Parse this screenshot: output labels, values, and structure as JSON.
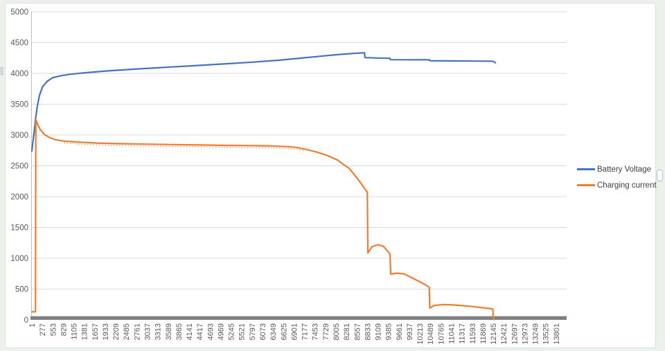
{
  "page": {
    "background": "#ecf1ec"
  },
  "chart": {
    "background": "#ffffff",
    "border_color": "#d7dee3",
    "gridline_color": "#d9d9d9",
    "axis_line_color": "#bfbfbf",
    "axis_bar_color": "#808080",
    "tick_label_color": "#595959",
    "legend_text_color": "#3f3f3f"
  },
  "chart_data": {
    "type": "line",
    "title": "",
    "xlabel": "",
    "ylabel": "",
    "xlim": [
      1,
      14077
    ],
    "ylim": [
      0,
      5000
    ],
    "grid": "horizontal",
    "legend_position": "right",
    "y_ticks": [
      0,
      500,
      1000,
      1500,
      2000,
      2500,
      3000,
      3500,
      4000,
      4500,
      5000
    ],
    "x_ticks": [
      1,
      277,
      553,
      829,
      1105,
      1381,
      1657,
      1933,
      2209,
      2485,
      2761,
      3037,
      3313,
      3589,
      3865,
      4141,
      4417,
      4693,
      4969,
      5245,
      5521,
      5797,
      6073,
      6349,
      6625,
      6901,
      7177,
      7453,
      7729,
      8005,
      8281,
      8557,
      8833,
      9109,
      9385,
      9661,
      9937,
      10213,
      10489,
      10765,
      11041,
      11317,
      11593,
      11869,
      12145,
      12421,
      12697,
      12973,
      13249,
      13525,
      13801
    ],
    "series": [
      {
        "name": "Battery Voltage",
        "color": "#4472C4",
        "points": [
          [
            1,
            2740
          ],
          [
            25,
            2870
          ],
          [
            60,
            3040
          ],
          [
            100,
            3270
          ],
          [
            140,
            3450
          ],
          [
            200,
            3640
          ],
          [
            280,
            3780
          ],
          [
            400,
            3870
          ],
          [
            550,
            3930
          ],
          [
            750,
            3960
          ],
          [
            1000,
            3985
          ],
          [
            1400,
            4010
          ],
          [
            2000,
            4040
          ],
          [
            2700,
            4068
          ],
          [
            3400,
            4094
          ],
          [
            4200,
            4122
          ],
          [
            5000,
            4152
          ],
          [
            5800,
            4182
          ],
          [
            6500,
            4214
          ],
          [
            7100,
            4248
          ],
          [
            7700,
            4284
          ],
          [
            8100,
            4308
          ],
          [
            8450,
            4324
          ],
          [
            8700,
            4333
          ],
          [
            8758,
            4333
          ],
          [
            8770,
            4256
          ],
          [
            9100,
            4250
          ],
          [
            9428,
            4245
          ],
          [
            9440,
            4222
          ],
          [
            9800,
            4221
          ],
          [
            10300,
            4220
          ],
          [
            10468,
            4220
          ],
          [
            10480,
            4204
          ],
          [
            11000,
            4202
          ],
          [
            11600,
            4200
          ],
          [
            12100,
            4198
          ],
          [
            12158,
            4192
          ],
          [
            12200,
            4172
          ]
        ]
      },
      {
        "name": "Charging current",
        "color": "#ED7D31",
        "ripple_range": [
          700,
          7400
        ],
        "points": [
          [
            1,
            130
          ],
          [
            95,
            130
          ],
          [
            105,
            3255
          ],
          [
            160,
            3160
          ],
          [
            230,
            3080
          ],
          [
            330,
            3010
          ],
          [
            460,
            2960
          ],
          [
            620,
            2925
          ],
          [
            850,
            2900
          ],
          [
            1200,
            2885
          ],
          [
            1700,
            2870
          ],
          [
            2300,
            2860
          ],
          [
            3000,
            2852
          ],
          [
            3700,
            2845
          ],
          [
            4400,
            2838
          ],
          [
            5100,
            2832
          ],
          [
            5800,
            2828
          ],
          [
            6300,
            2822
          ],
          [
            6700,
            2812
          ],
          [
            6950,
            2800
          ],
          [
            7200,
            2768
          ],
          [
            7500,
            2722
          ],
          [
            7800,
            2662
          ],
          [
            8050,
            2592
          ],
          [
            8150,
            2545
          ],
          [
            8350,
            2460
          ],
          [
            8600,
            2270
          ],
          [
            8830,
            2070
          ],
          [
            8845,
            1085
          ],
          [
            8950,
            1185
          ],
          [
            9100,
            1218
          ],
          [
            9250,
            1195
          ],
          [
            9428,
            1070
          ],
          [
            9445,
            742
          ],
          [
            9600,
            758
          ],
          [
            9800,
            745
          ],
          [
            10050,
            668
          ],
          [
            10300,
            590
          ],
          [
            10460,
            528
          ],
          [
            10475,
            192
          ],
          [
            10600,
            235
          ],
          [
            10850,
            248
          ],
          [
            11100,
            242
          ],
          [
            11500,
            222
          ],
          [
            11900,
            196
          ],
          [
            12100,
            180
          ],
          [
            12135,
            175
          ],
          [
            12145,
            30
          ],
          [
            12165,
            5
          ]
        ]
      }
    ]
  }
}
